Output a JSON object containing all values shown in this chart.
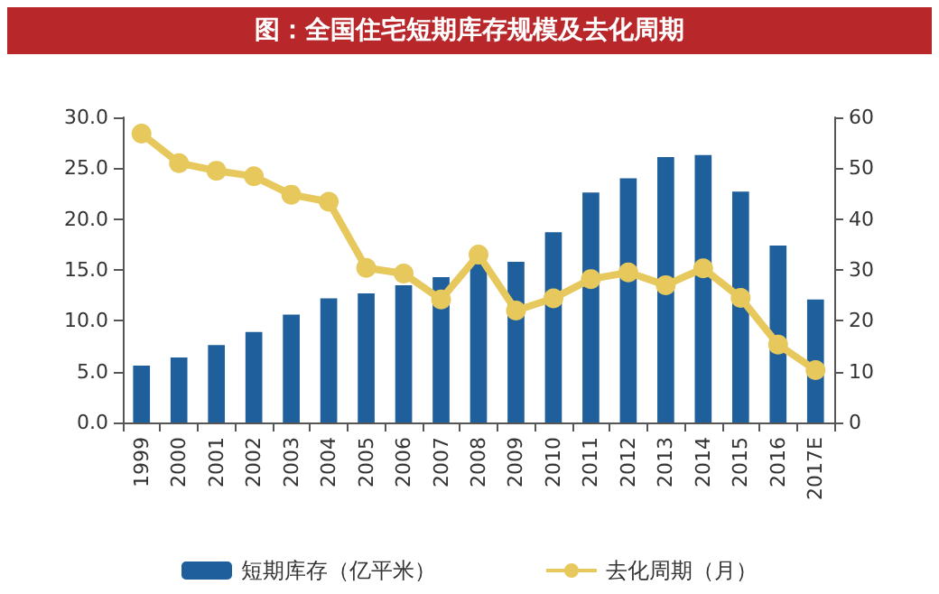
{
  "chart_data": {
    "type": "bar",
    "title": "图：全国住宅短期库存规模及去化周期",
    "categories": [
      "1999",
      "2000",
      "2001",
      "2002",
      "2003",
      "2004",
      "2005",
      "2006",
      "2007",
      "2008",
      "2009",
      "2010",
      "2011",
      "2012",
      "2013",
      "2014",
      "2015",
      "2016",
      "2017E"
    ],
    "series": [
      {
        "name": "短期库存（亿平米）",
        "color": "#1f5f9b",
        "values": [
          5.6,
          6.4,
          7.6,
          8.9,
          10.6,
          12.2,
          12.7,
          13.5,
          14.3,
          15.7,
          15.8,
          18.7,
          22.6,
          24.0,
          26.1,
          26.3,
          22.7,
          17.4,
          12.1
        ]
      },
      {
        "name": "去化周期（月）",
        "type": "line",
        "axis": "y2",
        "color": "#e6c85c",
        "marker": "circle",
        "values": [
          56.8,
          51.0,
          49.5,
          48.4,
          44.8,
          43.4,
          30.4,
          29.3,
          24.2,
          33.0,
          22.0,
          24.4,
          28.2,
          29.5,
          27.0,
          30.3,
          24.5,
          15.3,
          10.3
        ]
      }
    ],
    "ylim": [
      0,
      30
    ],
    "yticks": [
      {
        "value": 0,
        "label": "0.0"
      },
      {
        "value": 5,
        "label": "5.0"
      },
      {
        "value": 10,
        "label": "10.0"
      },
      {
        "value": 15,
        "label": "15.0"
      },
      {
        "value": 20,
        "label": "20.0"
      },
      {
        "value": 25,
        "label": "25.0"
      },
      {
        "value": 30,
        "label": "30.0"
      }
    ],
    "y2lim": [
      0,
      60
    ],
    "y2ticks": [
      0,
      10,
      20,
      30,
      40,
      50,
      60
    ],
    "grid": false,
    "legend": "bottom"
  }
}
